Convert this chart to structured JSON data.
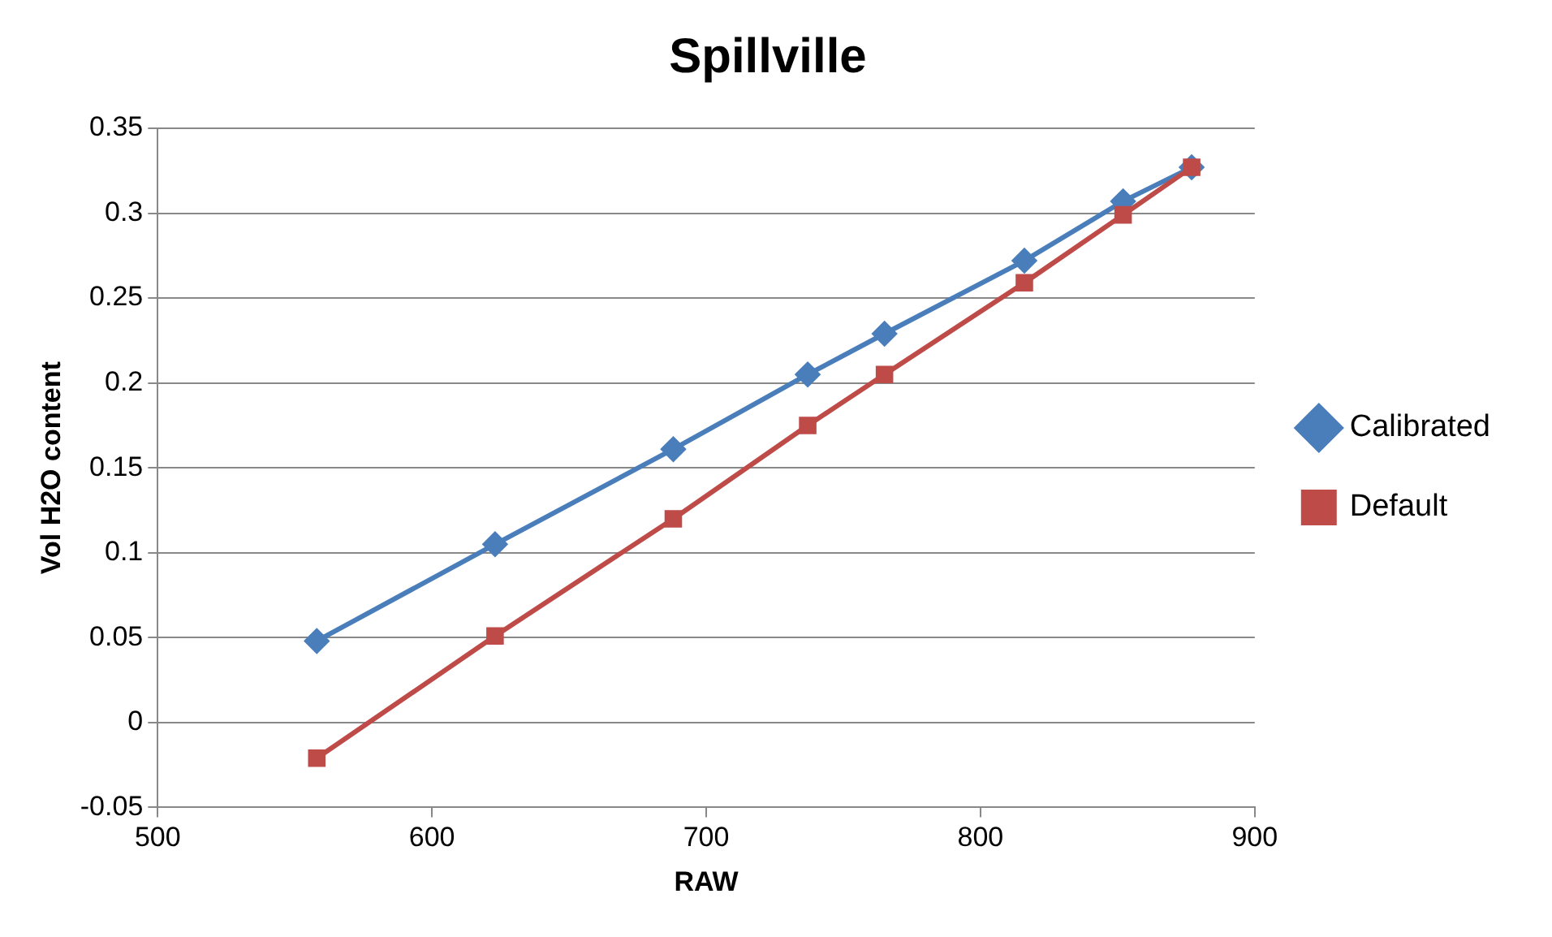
{
  "chart_data": {
    "type": "line",
    "title": "Spillville",
    "xlabel": "RAW",
    "ylabel": "Vol H2O content",
    "xlim": [
      500,
      900
    ],
    "xticks": [
      500,
      600,
      700,
      800,
      900
    ],
    "ylim": [
      -0.05,
      0.35
    ],
    "yticks": [
      -0.05,
      0,
      0.05,
      0.1,
      0.15,
      0.2,
      0.25,
      0.3,
      0.35
    ],
    "grid": "y",
    "legend": "right",
    "series": [
      {
        "name": "Calibrated",
        "color": "#4a7ebb",
        "marker": "diamond",
        "x": [
          558,
          623,
          688,
          737,
          765,
          816,
          852,
          877
        ],
        "values": [
          0.048,
          0.105,
          0.161,
          0.205,
          0.229,
          0.272,
          0.307,
          0.327
        ]
      },
      {
        "name": "Default",
        "color": "#be4b48",
        "marker": "square",
        "x": [
          558,
          623,
          688,
          737,
          765,
          816,
          852,
          877
        ],
        "values": [
          -0.021,
          0.051,
          0.12,
          0.175,
          0.205,
          0.259,
          0.299,
          0.327
        ]
      }
    ]
  }
}
